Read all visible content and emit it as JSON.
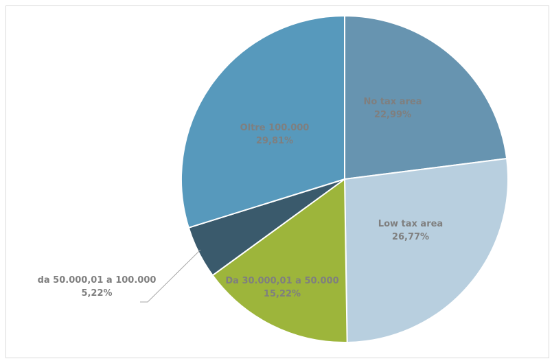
{
  "chart_data": {
    "type": "pie",
    "title": "",
    "slices": [
      {
        "label": "No tax area",
        "value": 22.99,
        "pct_label": "22,99%",
        "color": "#6794b0"
      },
      {
        "label": "Low tax area",
        "value": 26.77,
        "pct_label": "26,77%",
        "color": "#b8cfdf"
      },
      {
        "label": "Da 30.000,01 a 50.000",
        "value": 15.22,
        "pct_label": "15,22%",
        "color": "#9db53b"
      },
      {
        "label": "da 50.000,01 a 100.000",
        "value": 5.22,
        "pct_label": "5,22%",
        "color": "#3a5a6c"
      },
      {
        "label": "Oltre 100.000",
        "value": 29.81,
        "pct_label": "29,81%",
        "color": "#5799bc"
      }
    ],
    "start_angle_deg": 0,
    "direction": "clockwise",
    "legend": "none",
    "label_color": "#7f7f7f"
  }
}
